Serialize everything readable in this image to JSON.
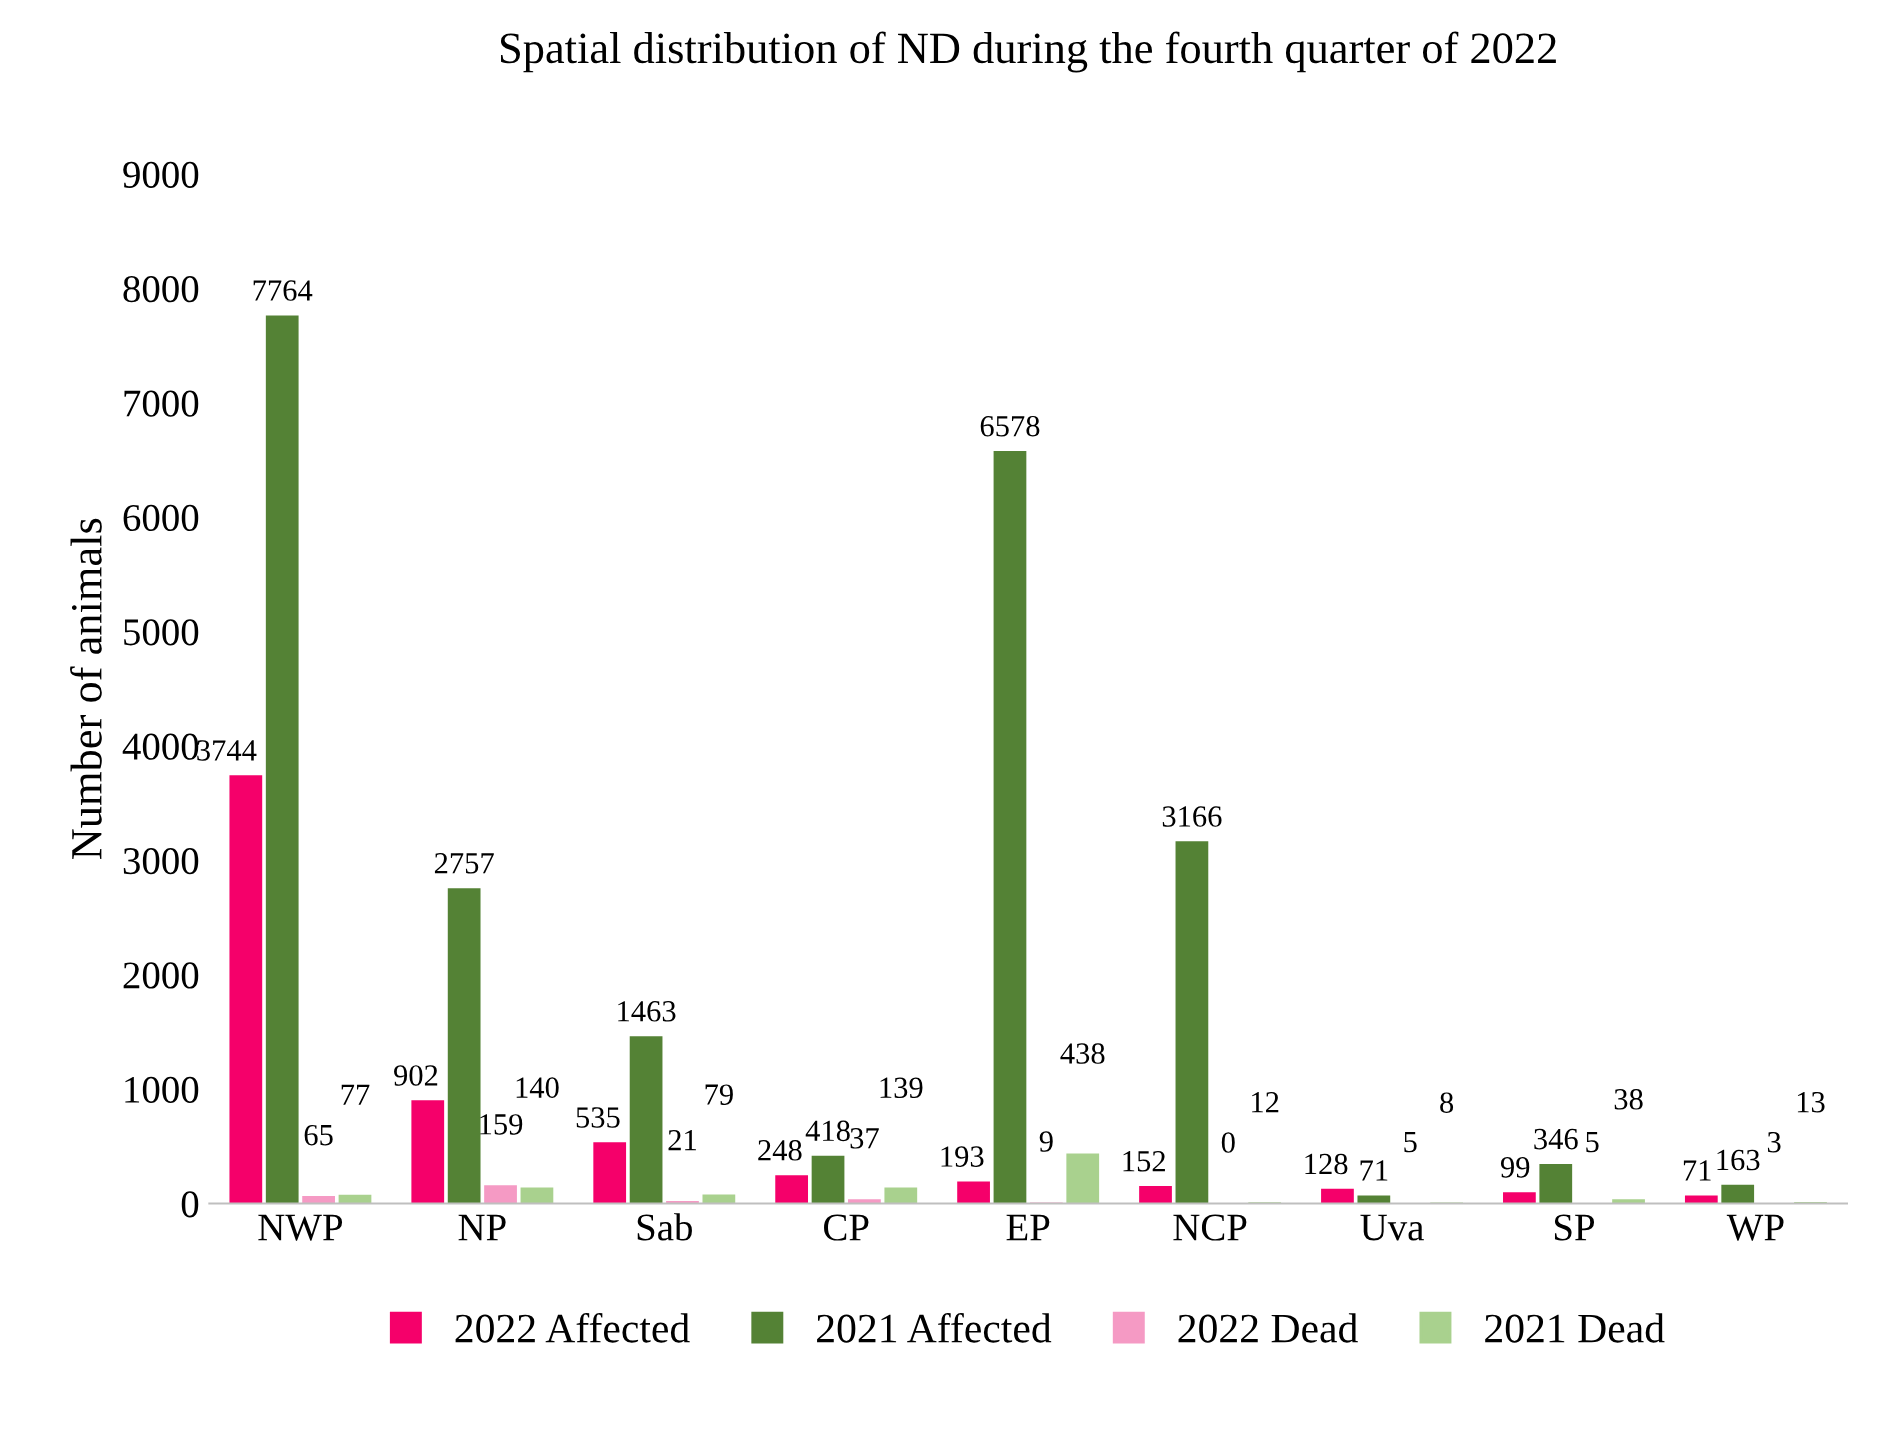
{
  "chart_data": {
    "type": "bar",
    "title": "Spatial distribution of ND during the fourth quarter of 2022",
    "ylabel": "Number of animals",
    "categories": [
      "NWP",
      "NP",
      "Sab",
      "CP",
      "EP",
      "NCP",
      "Uva",
      "SP",
      "WP"
    ],
    "series": [
      {
        "name": "2022 Affected",
        "color": "#f5006a",
        "values": [
          3744,
          902,
          535,
          248,
          193,
          152,
          128,
          99,
          71
        ]
      },
      {
        "name": "2021 Affected",
        "color": "#548235",
        "values": [
          7764,
          2757,
          1463,
          418,
          6578,
          3166,
          71,
          346,
          163
        ]
      },
      {
        "name": "2022 Dead",
        "color": "#f59ac4",
        "values": [
          65,
          159,
          21,
          37,
          9,
          0,
          5,
          5,
          3
        ]
      },
      {
        "name": "2021 Dead",
        "color": "#a9d18e",
        "values": [
          77,
          140,
          79,
          139,
          438,
          12,
          8,
          38,
          13
        ]
      }
    ],
    "ylim": [
      0,
      9000
    ],
    "yticks": [
      0,
      1000,
      2000,
      3000,
      4000,
      5000,
      6000,
      7000,
      8000,
      9000
    ],
    "grid": false,
    "legend": "bottom",
    "data_labels": true
  }
}
